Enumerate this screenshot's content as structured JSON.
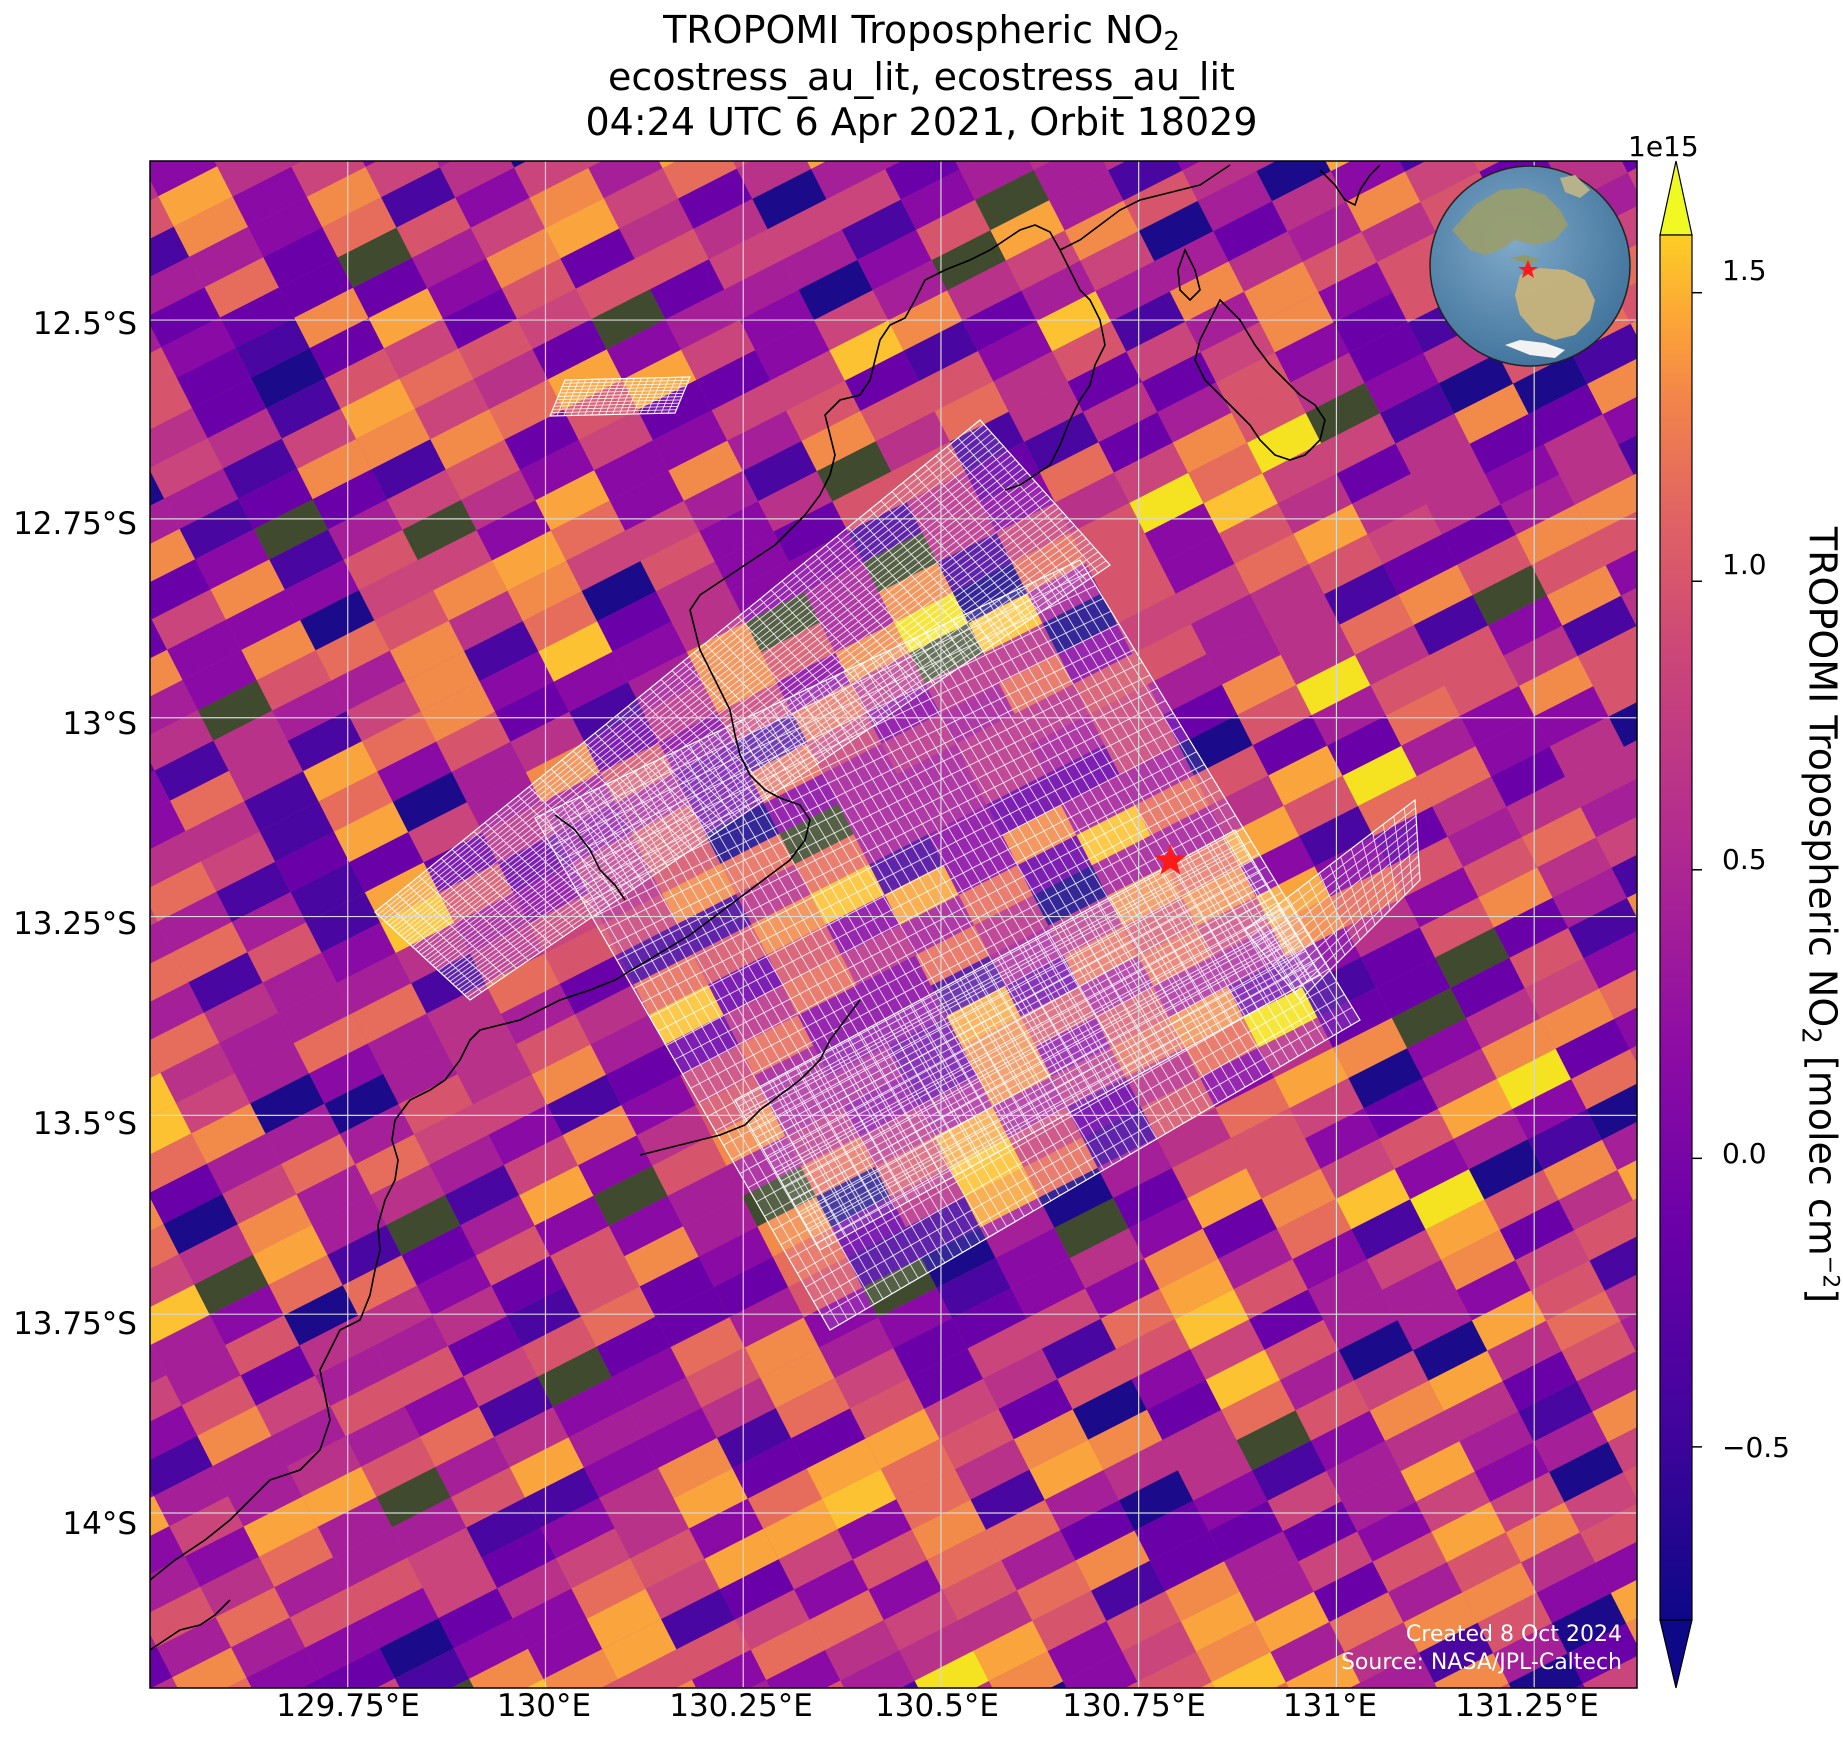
{
  "title": {
    "line1_text": "TROPOMI Tropospheric NO",
    "line1_sub": "2",
    "line2": "ecostress_au_lit, ecostress_au_lit",
    "line3": "04:24 UTC 6 Apr 2021, Orbit 18029"
  },
  "map": {
    "lat_range": [
      -14.22,
      -12.3
    ],
    "lon_range": [
      129.5,
      131.38
    ],
    "lat_ticks": [
      "12.5°S",
      "12.75°S",
      "13°S",
      "13.25°S",
      "13.5°S",
      "13.75°S",
      "14°S"
    ],
    "lon_ticks": [
      "129.75°E",
      "130°E",
      "130.25°E",
      "130.5°E",
      "130.75°E",
      "131°E",
      "131.25°E"
    ],
    "gridlines": true,
    "site_marker": {
      "lat": -13.18,
      "lon": 130.79,
      "symbol": "star",
      "color": "#ff1a1a"
    },
    "inset": {
      "type": "globe",
      "position": "top-right",
      "marker": "star"
    }
  },
  "colorbar": {
    "exponent_label": "1e15",
    "tick_labels": [
      "1.5",
      "1.0",
      "0.5",
      "0.0",
      "−0.5"
    ],
    "range": [
      -0.8,
      1.6
    ],
    "colormap": "plasma",
    "title_text": "TROPOMI Tropospheric NO",
    "title_sub": "2",
    "title_units_pre": " [molec cm",
    "title_units_sup": "−2",
    "title_units_post": "]"
  },
  "credits": {
    "created": "Created 8 Oct 2024",
    "source": "Source: NASA/JPL-Caltech"
  }
}
